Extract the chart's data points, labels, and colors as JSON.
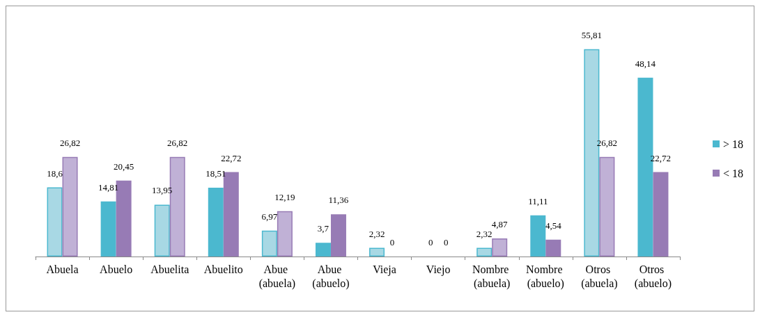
{
  "chart_data": {
    "type": "bar",
    "categories": [
      "Abuela",
      "Abuelo",
      "Abuelita",
      "Abuelito",
      "Abue (abuela)",
      "Abue (abuelo)",
      "Vieja",
      "Viejo",
      "Nombre (abuela)",
      "Nombre (abuelo)",
      "Otros (abuela)",
      "Otros (abuelo)"
    ],
    "series": [
      {
        "name": "> 18",
        "color": "#4bb8cf",
        "colors": [
          "#a8d8e4",
          "#4bb8cf",
          "#a8d8e4",
          "#4bb8cf",
          "#a8d8e4",
          "#4bb8cf",
          "#a8d8e4",
          "#4bb8cf",
          "#a8d8e4",
          "#4bb8cf",
          "#a8d8e4",
          "#4bb8cf"
        ],
        "values": [
          18.6,
          14.81,
          13.95,
          18.51,
          6.97,
          3.7,
          2.32,
          0,
          2.32,
          11.11,
          55.81,
          48.14
        ],
        "value_labels": [
          "18,6",
          "14,81",
          "13,95",
          "18,51",
          "6,97",
          "3,7",
          "2,32",
          "0",
          "2,32",
          "11,11",
          "55,81",
          "48,14"
        ]
      },
      {
        "name": "< 18",
        "color": "#977bb5",
        "colors": [
          "#c0b1d6",
          "#977bb5",
          "#c0b1d6",
          "#977bb5",
          "#c0b1d6",
          "#977bb5",
          "#c0b1d6",
          "#977bb5",
          "#c0b1d6",
          "#977bb5",
          "#c0b1d6",
          "#977bb5"
        ],
        "values": [
          26.82,
          20.45,
          26.82,
          22.72,
          12.19,
          11.36,
          0,
          0,
          4.87,
          4.54,
          26.82,
          22.72
        ],
        "value_labels": [
          "26,82",
          "20,45",
          "26,82",
          "22,72",
          "12,19",
          "11,36",
          "0",
          "0",
          "4,87",
          "4,54",
          "26,82",
          "22,72"
        ]
      }
    ],
    "legend": "right",
    "grid": false
  }
}
